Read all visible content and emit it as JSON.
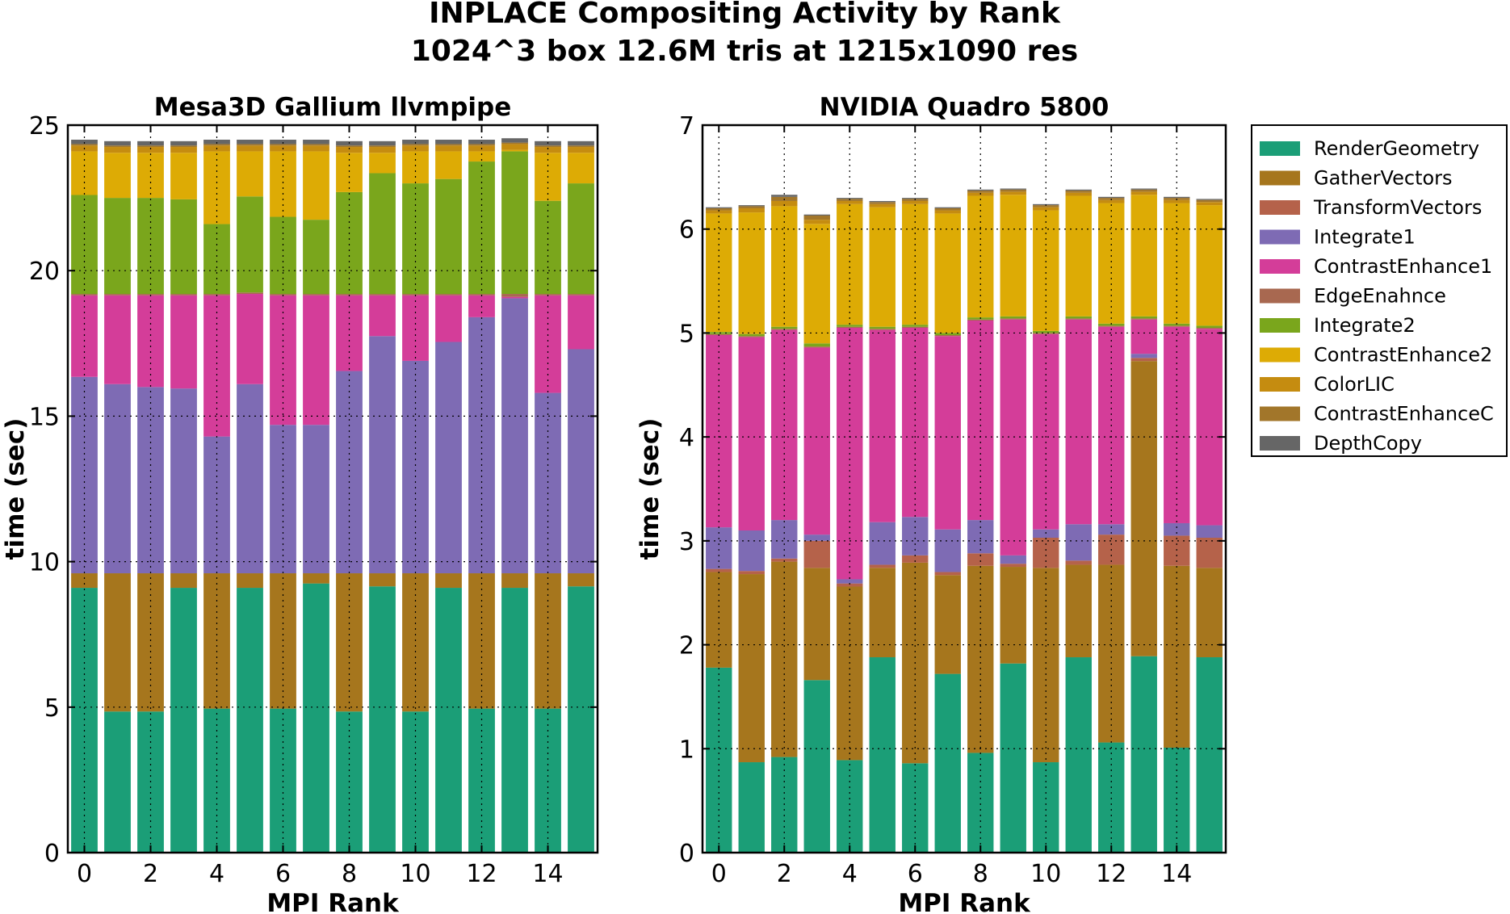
{
  "figure": {
    "title_line1": "INPLACE Compositing Activity by Rank",
    "title_line2": "1024^3 box 12.6M tris at 1215x1090 res"
  },
  "legend": {
    "series_names": [
      "RenderGeometry",
      "GatherVectors",
      "TransformVectors",
      "Integrate1",
      "ContrastEnhance1",
      "EdgeEnahnce",
      "Integrate2",
      "ContrastEnhance2",
      "ColorLIC",
      "ContrastEnhanceC",
      "DepthCopy"
    ],
    "series_colors": [
      "#1b9e77",
      "#a6761d",
      "#b5624a",
      "#7e6bb4",
      "#d43d99",
      "#a86850",
      "#7aa61c",
      "#ddab05",
      "#c58c10",
      "#a2762a",
      "#666666"
    ]
  },
  "chart_data": [
    {
      "type": "bar",
      "stacked": true,
      "title": "Mesa3D Gallium llvmpipe",
      "xlabel": "MPI Rank",
      "ylabel": "time (sec)",
      "categories": [
        0,
        1,
        2,
        3,
        4,
        5,
        6,
        7,
        8,
        9,
        10,
        11,
        12,
        13,
        14,
        15
      ],
      "x_ticks": [
        "0",
        "2",
        "4",
        "6",
        "8",
        "10",
        "12",
        "14"
      ],
      "y_ticks": [
        "0",
        "5",
        "10",
        "15",
        "20",
        "25"
      ],
      "ylim": [
        0,
        25
      ],
      "grid": true,
      "series": [
        {
          "name": "RenderGeometry",
          "values": [
            9.1,
            4.85,
            4.85,
            9.1,
            4.95,
            9.1,
            4.95,
            9.25,
            4.85,
            9.15,
            4.85,
            9.1,
            4.95,
            9.1,
            4.95,
            9.15
          ]
        },
        {
          "name": "GatherVectors",
          "values": [
            0.5,
            4.75,
            4.75,
            0.5,
            4.65,
            0.5,
            4.65,
            0.35,
            4.75,
            0.45,
            4.75,
            0.5,
            4.65,
            0.5,
            4.65,
            0.45
          ]
        },
        {
          "name": "TransformVectors",
          "values": [
            0,
            0,
            0,
            0,
            0,
            0,
            0,
            0,
            0,
            0,
            0,
            0,
            0,
            0,
            0,
            0
          ]
        },
        {
          "name": "Integrate1",
          "values": [
            6.75,
            6.5,
            6.4,
            6.35,
            4.7,
            6.5,
            5.1,
            5.1,
            6.95,
            8.15,
            7.3,
            7.95,
            8.8,
            9.45,
            6.2,
            7.7
          ]
        },
        {
          "name": "ContrastEnhance1",
          "values": [
            2.8,
            3.05,
            3.15,
            3.2,
            4.85,
            3.1,
            4.45,
            4.45,
            2.6,
            1.4,
            2.25,
            1.6,
            0.75,
            0.05,
            3.35,
            1.85
          ]
        },
        {
          "name": "EdgeEnahnce",
          "values": [
            0.05,
            0.05,
            0.05,
            0.05,
            0.05,
            0.05,
            0.05,
            0.05,
            0.05,
            0.05,
            0.05,
            0.05,
            0.05,
            0.1,
            0.05,
            0.05
          ]
        },
        {
          "name": "Integrate2",
          "values": [
            3.4,
            3.3,
            3.3,
            3.25,
            2.4,
            3.3,
            2.65,
            2.55,
            3.5,
            4.15,
            3.8,
            3.95,
            4.55,
            4.9,
            3.2,
            3.8
          ]
        },
        {
          "name": "ContrastEnhance2",
          "values": [
            1.5,
            1.55,
            1.55,
            1.6,
            2.5,
            1.55,
            2.25,
            2.35,
            1.35,
            0.7,
            1.1,
            0.95,
            0.35,
            0.05,
            1.65,
            1.05
          ]
        },
        {
          "name": "ColorLIC",
          "values": [
            0.2,
            0.2,
            0.2,
            0.2,
            0.2,
            0.2,
            0.2,
            0.2,
            0.2,
            0.2,
            0.2,
            0.2,
            0.2,
            0.2,
            0.2,
            0.2
          ]
        },
        {
          "name": "ContrastEnhanceC",
          "values": [
            0.05,
            0.05,
            0.05,
            0.05,
            0.05,
            0.05,
            0.05,
            0.05,
            0.05,
            0.05,
            0.05,
            0.05,
            0.05,
            0.05,
            0.05,
            0.05
          ]
        },
        {
          "name": "DepthCopy",
          "values": [
            0.15,
            0.15,
            0.15,
            0.15,
            0.15,
            0.15,
            0.15,
            0.15,
            0.15,
            0.15,
            0.15,
            0.15,
            0.15,
            0.15,
            0.15,
            0.15
          ]
        }
      ]
    },
    {
      "type": "bar",
      "stacked": true,
      "title": "NVIDIA Quadro 5800",
      "xlabel": "MPI Rank",
      "ylabel": "time (sec)",
      "categories": [
        0,
        1,
        2,
        3,
        4,
        5,
        6,
        7,
        8,
        9,
        10,
        11,
        12,
        13,
        14,
        15
      ],
      "x_ticks": [
        "0",
        "2",
        "4",
        "6",
        "8",
        "10",
        "12",
        "14"
      ],
      "y_ticks": [
        "0",
        "1",
        "2",
        "3",
        "4",
        "5",
        "6",
        "7"
      ],
      "ylim": [
        0,
        7
      ],
      "grid": true,
      "series": [
        {
          "name": "RenderGeometry",
          "values": [
            1.78,
            0.87,
            0.92,
            1.66,
            0.89,
            1.88,
            0.86,
            1.72,
            0.96,
            1.82,
            0.87,
            1.88,
            1.06,
            1.89,
            1.01,
            1.88
          ]
        },
        {
          "name": "GatherVectors",
          "values": [
            0.92,
            1.81,
            1.88,
            1.08,
            1.67,
            0.86,
            1.93,
            0.95,
            1.8,
            0.93,
            1.87,
            0.89,
            1.71,
            2.84,
            1.75,
            0.86
          ]
        },
        {
          "name": "TransformVectors",
          "values": [
            0.03,
            0.03,
            0.03,
            0.26,
            0.03,
            0.03,
            0.07,
            0.03,
            0.12,
            0.03,
            0.29,
            0.04,
            0.29,
            0.03,
            0.29,
            0.29
          ]
        },
        {
          "name": "Integrate1",
          "values": [
            0.4,
            0.39,
            0.37,
            0.06,
            0.04,
            0.41,
            0.37,
            0.41,
            0.32,
            0.08,
            0.08,
            0.35,
            0.1,
            0.04,
            0.12,
            0.12
          ]
        },
        {
          "name": "ContrastEnhance1",
          "values": [
            1.85,
            1.86,
            1.83,
            1.8,
            2.42,
            1.85,
            1.82,
            1.86,
            1.92,
            2.27,
            1.88,
            1.97,
            1.9,
            0.33,
            1.89,
            1.89
          ]
        },
        {
          "name": "EdgeEnahnce",
          "values": [
            0.01,
            0.01,
            0.01,
            0.01,
            0.01,
            0.01,
            0.01,
            0.01,
            0.01,
            0.01,
            0.01,
            0.01,
            0.01,
            0.01,
            0.01,
            0.01
          ]
        },
        {
          "name": "Integrate2",
          "values": [
            0.02,
            0.02,
            0.02,
            0.03,
            0.02,
            0.02,
            0.02,
            0.02,
            0.02,
            0.02,
            0.02,
            0.02,
            0.02,
            0.02,
            0.02,
            0.02
          ]
        },
        {
          "name": "ContrastEnhance2",
          "values": [
            1.14,
            1.17,
            1.16,
            1.15,
            1.16,
            1.15,
            1.16,
            1.15,
            1.17,
            1.17,
            1.16,
            1.16,
            1.16,
            1.17,
            1.16,
            1.16
          ]
        },
        {
          "name": "ColorLIC",
          "values": [
            0.03,
            0.04,
            0.05,
            0.04,
            0.03,
            0.03,
            0.03,
            0.03,
            0.03,
            0.03,
            0.03,
            0.03,
            0.03,
            0.03,
            0.03,
            0.03
          ]
        },
        {
          "name": "ContrastEnhanceC",
          "values": [
            0.02,
            0.02,
            0.04,
            0.04,
            0.02,
            0.02,
            0.02,
            0.02,
            0.02,
            0.02,
            0.02,
            0.02,
            0.02,
            0.02,
            0.02,
            0.02
          ]
        },
        {
          "name": "DepthCopy",
          "values": [
            0.01,
            0.01,
            0.02,
            0.01,
            0.01,
            0.01,
            0.01,
            0.01,
            0.01,
            0.01,
            0.01,
            0.01,
            0.01,
            0.01,
            0.01,
            0.01
          ]
        }
      ]
    }
  ]
}
